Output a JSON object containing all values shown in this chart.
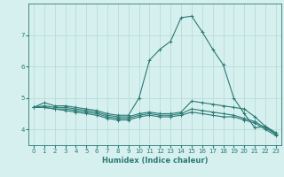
{
  "xlabel": "Humidex (Indice chaleur)",
  "ylabel": "",
  "bg_color": "#d6f0ef",
  "grid_color": "#b8dcda",
  "line_color": "#2a7a74",
  "x_values": [
    0,
    1,
    2,
    3,
    4,
    5,
    6,
    7,
    8,
    9,
    10,
    11,
    12,
    13,
    14,
    15,
    16,
    17,
    18,
    19,
    20,
    21,
    22,
    23
  ],
  "lines": [
    [
      4.7,
      4.85,
      4.75,
      4.75,
      4.7,
      4.65,
      4.6,
      4.5,
      4.45,
      4.45,
      5.0,
      6.2,
      6.55,
      6.8,
      7.55,
      7.6,
      7.1,
      6.55,
      6.05,
      5.0,
      4.5,
      4.05,
      4.1,
      3.85
    ],
    [
      4.7,
      4.75,
      4.7,
      4.7,
      4.65,
      4.6,
      4.55,
      4.45,
      4.4,
      4.4,
      4.5,
      4.55,
      4.5,
      4.5,
      4.55,
      4.9,
      4.85,
      4.8,
      4.75,
      4.7,
      4.65,
      4.4,
      4.1,
      3.9
    ],
    [
      4.7,
      4.7,
      4.65,
      4.65,
      4.6,
      4.55,
      4.5,
      4.4,
      4.35,
      4.35,
      4.45,
      4.5,
      4.45,
      4.45,
      4.5,
      4.65,
      4.6,
      4.55,
      4.5,
      4.45,
      4.35,
      4.25,
      4.05,
      3.85
    ],
    [
      4.7,
      4.7,
      4.65,
      4.6,
      4.55,
      4.5,
      4.45,
      4.35,
      4.3,
      4.3,
      4.4,
      4.45,
      4.4,
      4.4,
      4.45,
      4.55,
      4.5,
      4.45,
      4.4,
      4.4,
      4.3,
      4.2,
      4.0,
      3.8
    ]
  ],
  "ylim": [
    3.5,
    8.0
  ],
  "yticks": [
    4,
    5,
    6,
    7
  ],
  "xlim": [
    -0.5,
    23.5
  ],
  "xticks": [
    0,
    1,
    2,
    3,
    4,
    5,
    6,
    7,
    8,
    9,
    10,
    11,
    12,
    13,
    14,
    15,
    16,
    17,
    18,
    19,
    20,
    21,
    22,
    23
  ],
  "marker": "+",
  "markersize": 3,
  "linewidth": 0.8,
  "label_fontsize": 6,
  "tick_fontsize": 5
}
